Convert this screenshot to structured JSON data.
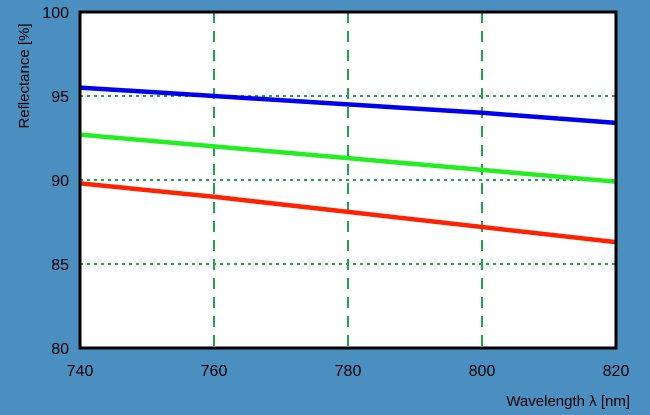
{
  "chart_data": {
    "type": "line",
    "title": "",
    "xlabel": "Wavelength λ [nm]",
    "ylabel": "Reflectance [%]",
    "xlim": [
      740,
      820
    ],
    "ylim": [
      80,
      100
    ],
    "xticks": [
      740,
      760,
      780,
      800,
      820
    ],
    "yticks": [
      80,
      85,
      90,
      95,
      100
    ],
    "grid": true,
    "background_color": "#4a8fc0",
    "plot_background": "#ffffff",
    "grid_color": "#1fa64a",
    "series": [
      {
        "color": "#0000ee",
        "x": [
          740,
          760,
          780,
          800,
          820
        ],
        "y": [
          95.5,
          95.0,
          94.5,
          94.0,
          93.4
        ]
      },
      {
        "color": "#22ee22",
        "x": [
          740,
          760,
          780,
          800,
          820
        ],
        "y": [
          92.7,
          92.0,
          91.3,
          90.6,
          89.9
        ]
      },
      {
        "color": "#ff2200",
        "x": [
          740,
          760,
          780,
          800,
          820
        ],
        "y": [
          89.8,
          89.0,
          88.1,
          87.2,
          86.3
        ]
      }
    ]
  }
}
